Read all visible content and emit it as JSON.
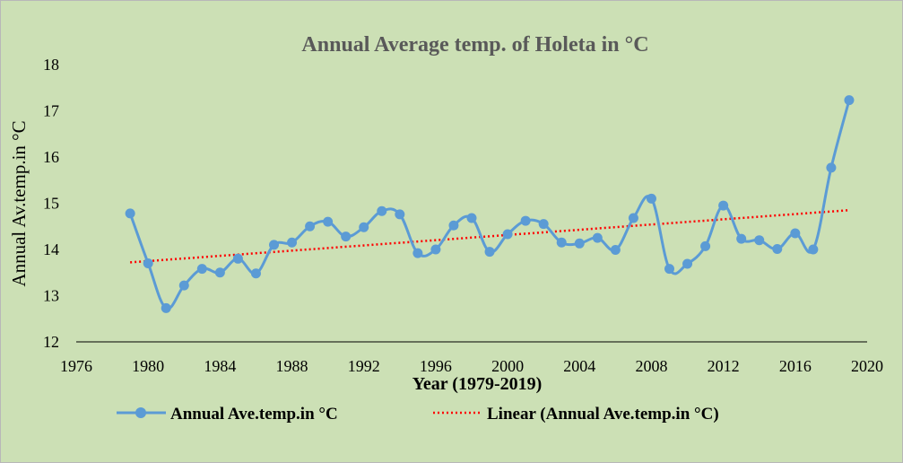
{
  "chart_data": {
    "type": "line",
    "title": "Annual Average  temp. of Holeta in °C",
    "xlabel": "Year  (1979-2019)",
    "ylabel": "Annual Av.temp.in  °C",
    "xlim": [
      1976,
      2020
    ],
    "ylim": [
      12,
      18
    ],
    "x_ticks": [
      "1976",
      "1980",
      "1984",
      "1988",
      "1992",
      "1996",
      "2000",
      "2004",
      "2008",
      "2012",
      "2016",
      "2020"
    ],
    "y_ticks": [
      "12",
      "13",
      "14",
      "15",
      "16",
      "17",
      "18"
    ],
    "series": [
      {
        "name": "Annual Ave.temp.in °C",
        "color": "#5b9bd5",
        "smooth": true,
        "x": [
          1979,
          1980,
          1981,
          1982,
          1983,
          1984,
          1985,
          1986,
          1987,
          1988,
          1989,
          1990,
          1991,
          1992,
          1993,
          1994,
          1995,
          1996,
          1997,
          1998,
          1999,
          2000,
          2001,
          2002,
          2003,
          2004,
          2005,
          2006,
          2007,
          2008,
          2009,
          2010,
          2011,
          2012,
          2013,
          2014,
          2015,
          2016,
          2017,
          2018,
          2019
        ],
        "values": [
          14.78,
          13.7,
          12.73,
          13.22,
          13.58,
          13.5,
          13.8,
          13.48,
          14.1,
          14.15,
          14.5,
          14.6,
          14.28,
          14.48,
          14.83,
          14.76,
          13.92,
          14.0,
          14.52,
          14.68,
          13.95,
          14.33,
          14.62,
          14.55,
          14.15,
          14.13,
          14.25,
          13.99,
          14.68,
          15.1,
          13.58,
          13.69,
          14.07,
          14.95,
          14.23,
          14.2,
          14.01,
          14.35,
          14.0,
          15.77,
          17.23
        ]
      }
    ],
    "trendline": {
      "name": "Linear (Annual Ave.temp.in °C)",
      "color": "#ff0000",
      "x": [
        1979,
        2019
      ],
      "values": [
        13.72,
        14.85
      ]
    }
  }
}
